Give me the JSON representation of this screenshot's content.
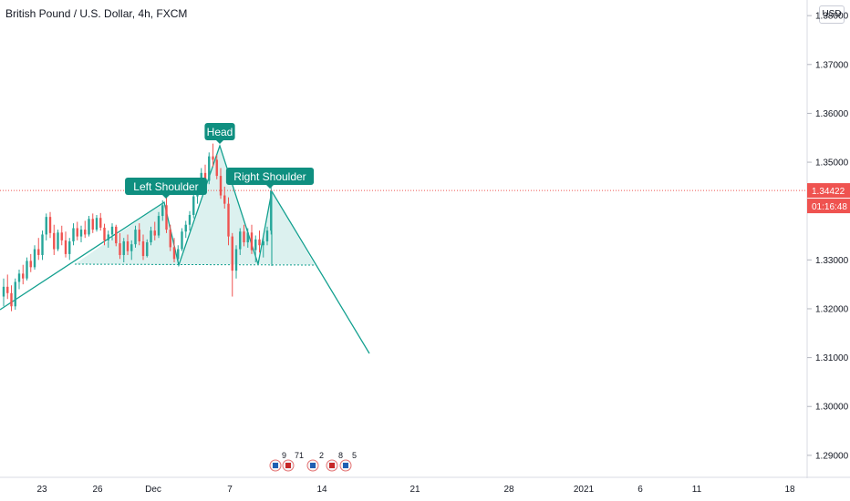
{
  "title": "British Pound / U.S. Dollar, 4h, FXCM",
  "currency": "USD",
  "colors": {
    "up": "#26a69a",
    "down": "#ef5350",
    "pattern": "#12a08f",
    "pattern_fill": "rgba(38,166,154,0.16)",
    "price_line": "#ef5350"
  },
  "chart_data": {
    "type": "candlestick",
    "title": "British Pound / U.S. Dollar, 4h, FXCM",
    "ylim": [
      1.2855,
      1.3832
    ],
    "y_ticks": [
      "1.38000",
      "1.37000",
      "1.36000",
      "1.35000",
      "1.33000",
      "1.32000",
      "1.31000",
      "1.30000",
      "1.29000"
    ],
    "x_ticks": [
      "23",
      "26",
      "Dec",
      "7",
      "14",
      "21",
      "28",
      "2021",
      "6",
      "11",
      "18"
    ],
    "last_price": {
      "value": "1.34422",
      "countdown": "01:16:48"
    },
    "candles": [
      [
        1.3225,
        1.3262,
        1.3205,
        1.3245
      ],
      [
        1.3245,
        1.327,
        1.322,
        1.3232
      ],
      [
        1.3232,
        1.3248,
        1.3195,
        1.3205
      ],
      [
        1.3205,
        1.3262,
        1.3198,
        1.3255
      ],
      [
        1.3255,
        1.328,
        1.324,
        1.3272
      ],
      [
        1.3272,
        1.329,
        1.325,
        1.3262
      ],
      [
        1.3262,
        1.3305,
        1.3258,
        1.3298
      ],
      [
        1.3298,
        1.3312,
        1.3275,
        1.3285
      ],
      [
        1.3285,
        1.333,
        1.328,
        1.3322
      ],
      [
        1.3322,
        1.3345,
        1.33,
        1.331
      ],
      [
        1.331,
        1.336,
        1.33,
        1.3352
      ],
      [
        1.3352,
        1.3395,
        1.334,
        1.3388
      ],
      [
        1.3388,
        1.3398,
        1.3345,
        1.3355
      ],
      [
        1.3355,
        1.3372,
        1.331,
        1.3322
      ],
      [
        1.3322,
        1.3362,
        1.3318,
        1.3356
      ],
      [
        1.3356,
        1.337,
        1.333,
        1.334
      ],
      [
        1.334,
        1.3358,
        1.3305,
        1.3312
      ],
      [
        1.3312,
        1.3345,
        1.33,
        1.3338
      ],
      [
        1.3338,
        1.3375,
        1.333,
        1.3365
      ],
      [
        1.3365,
        1.3378,
        1.334,
        1.3348
      ],
      [
        1.3348,
        1.337,
        1.3336,
        1.3362
      ],
      [
        1.3362,
        1.338,
        1.3345,
        1.3352
      ],
      [
        1.3352,
        1.339,
        1.3348,
        1.3384
      ],
      [
        1.3384,
        1.3395,
        1.3355,
        1.3362
      ],
      [
        1.3362,
        1.3392,
        1.3358,
        1.3386
      ],
      [
        1.3386,
        1.3396,
        1.336,
        1.3366
      ],
      [
        1.3366,
        1.3374,
        1.333,
        1.334
      ],
      [
        1.334,
        1.336,
        1.3325,
        1.3352
      ],
      [
        1.3352,
        1.3375,
        1.334,
        1.3368
      ],
      [
        1.3368,
        1.3372,
        1.3328,
        1.3334
      ],
      [
        1.3334,
        1.3355,
        1.3302,
        1.331
      ],
      [
        1.331,
        1.3345,
        1.3295,
        1.3338
      ],
      [
        1.3338,
        1.3352,
        1.331,
        1.3318
      ],
      [
        1.3318,
        1.334,
        1.33,
        1.3332
      ],
      [
        1.3332,
        1.337,
        1.3325,
        1.3362
      ],
      [
        1.3362,
        1.3375,
        1.333,
        1.3338
      ],
      [
        1.3338,
        1.3352,
        1.33,
        1.3308
      ],
      [
        1.3308,
        1.3342,
        1.3305,
        1.3336
      ],
      [
        1.3336,
        1.3368,
        1.333,
        1.336
      ],
      [
        1.336,
        1.3378,
        1.334,
        1.335
      ],
      [
        1.335,
        1.3398,
        1.3345,
        1.339
      ],
      [
        1.339,
        1.3422,
        1.338,
        1.3412
      ],
      [
        1.3412,
        1.3428,
        1.3355,
        1.3362
      ],
      [
        1.3362,
        1.3372,
        1.3318,
        1.3326
      ],
      [
        1.3326,
        1.3345,
        1.3295,
        1.3302
      ],
      [
        1.3302,
        1.333,
        1.3298,
        1.3322
      ],
      [
        1.3322,
        1.3365,
        1.3318,
        1.3358
      ],
      [
        1.3358,
        1.338,
        1.3345,
        1.3372
      ],
      [
        1.3372,
        1.34,
        1.336,
        1.3392
      ],
      [
        1.3392,
        1.344,
        1.3385,
        1.343
      ],
      [
        1.343,
        1.3465,
        1.3415,
        1.3455
      ],
      [
        1.3455,
        1.3488,
        1.344,
        1.3478
      ],
      [
        1.3478,
        1.3495,
        1.345,
        1.3462
      ],
      [
        1.3462,
        1.352,
        1.3455,
        1.3512
      ],
      [
        1.3512,
        1.3538,
        1.349,
        1.3505
      ],
      [
        1.3505,
        1.3515,
        1.3465,
        1.3472
      ],
      [
        1.3472,
        1.3488,
        1.3425,
        1.3432
      ],
      [
        1.3432,
        1.345,
        1.3405,
        1.3415
      ],
      [
        1.3415,
        1.3428,
        1.333,
        1.3348
      ],
      [
        1.3348,
        1.3355,
        1.3225,
        1.3278
      ],
      [
        1.3278,
        1.333,
        1.3262,
        1.3322
      ],
      [
        1.3322,
        1.3365,
        1.331,
        1.3358
      ],
      [
        1.3358,
        1.3372,
        1.3328,
        1.3336
      ],
      [
        1.3336,
        1.3365,
        1.3325,
        1.3356
      ],
      [
        1.3356,
        1.3372,
        1.3312,
        1.332
      ],
      [
        1.332,
        1.335,
        1.3295,
        1.3342
      ],
      [
        1.3342,
        1.336,
        1.3315,
        1.333
      ],
      [
        1.333,
        1.3348,
        1.3305,
        1.3338
      ],
      [
        1.3338,
        1.3368,
        1.333,
        1.336
      ],
      [
        1.336,
        1.345,
        1.3352,
        1.3442
      ]
    ],
    "pattern_labels": [
      "Left Shoulder",
      "Head",
      "Right Shoulder"
    ],
    "events": [
      "9",
      "71",
      "2",
      "8",
      "5"
    ]
  }
}
